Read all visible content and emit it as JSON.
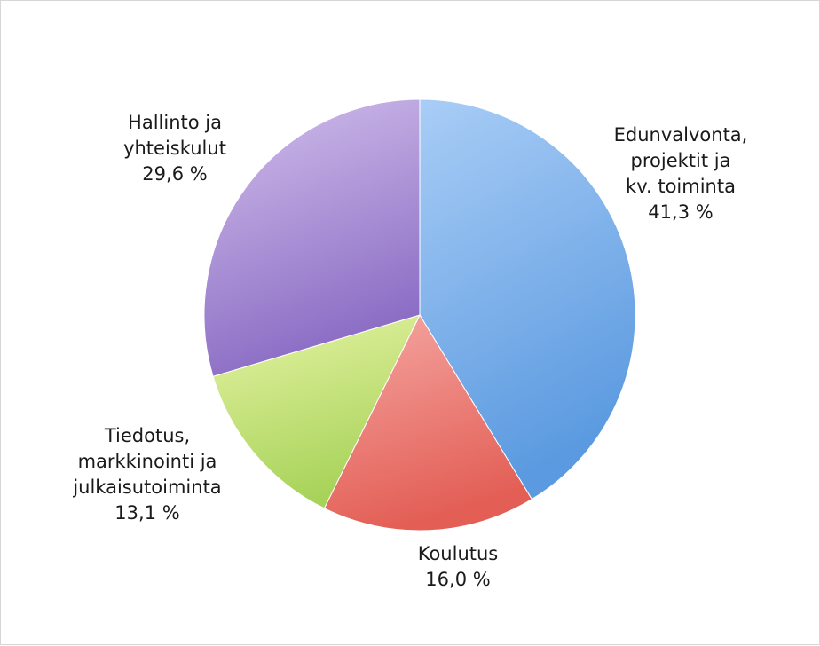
{
  "chart_data": {
    "type": "pie",
    "title": "",
    "slices": [
      {
        "label": [
          "Edunvalvonta,",
          "projektit ja",
          "kv. toiminta"
        ],
        "value_text": "41,3 %",
        "value": 41.3,
        "color_light": "#a9cdf6",
        "color_dark": "#5b9ae0"
      },
      {
        "label": [
          "Koulutus"
        ],
        "value_text": "16,0 %",
        "value": 16.0,
        "color_light": "#f5a7a3",
        "color_dark": "#e35f56"
      },
      {
        "label": [
          "Tiedotus,",
          "markkinointi ja",
          "julkaisutoiminta"
        ],
        "value_text": "13,1 %",
        "value": 13.1,
        "color_light": "#e6f3a4",
        "color_dark": "#a8d35a"
      },
      {
        "label": [
          "Hallinto ja",
          "yhteiskulut"
        ],
        "value_text": "29,6 %",
        "value": 29.6,
        "color_light": "#d3c0ec",
        "color_dark": "#8a6cc4"
      }
    ]
  }
}
